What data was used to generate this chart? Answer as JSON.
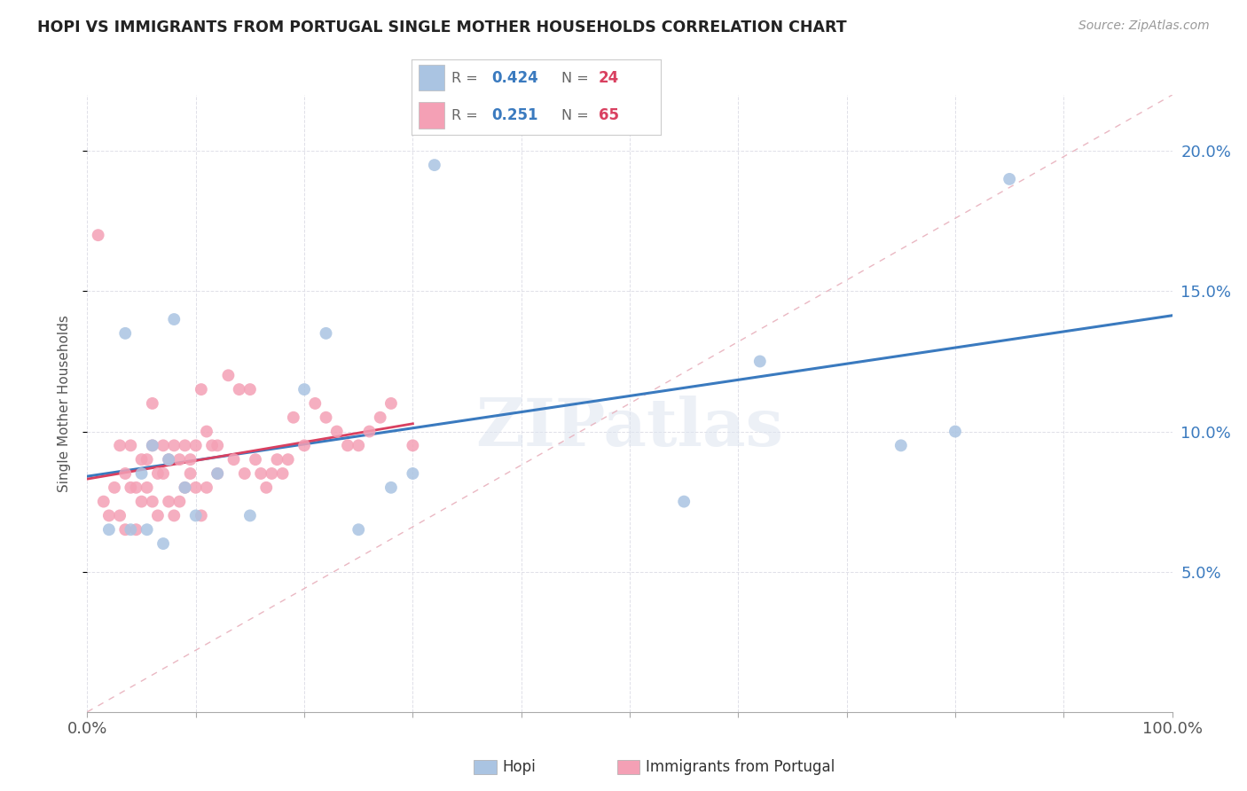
{
  "title": "HOPI VS IMMIGRANTS FROM PORTUGAL SINGLE MOTHER HOUSEHOLDS CORRELATION CHART",
  "source": "Source: ZipAtlas.com",
  "ylabel": "Single Mother Households",
  "hopi_R": 0.424,
  "hopi_N": 24,
  "portugal_R": 0.251,
  "portugal_N": 65,
  "hopi_color": "#aac4e2",
  "portugal_color": "#f4a0b5",
  "hopi_line_color": "#3a7abf",
  "portugal_line_color": "#d94060",
  "diagonal_color": "#e8b0bc",
  "background_color": "#ffffff",
  "grid_color": "#e0e0e8",
  "hopi_scatter_x": [
    2.0,
    3.5,
    4.0,
    5.0,
    5.5,
    6.0,
    7.0,
    7.5,
    8.0,
    9.0,
    10.0,
    12.0,
    15.0,
    20.0,
    22.0,
    25.0,
    28.0,
    30.0,
    32.0,
    55.0,
    62.0,
    75.0,
    80.0,
    85.0
  ],
  "hopi_scatter_y": [
    6.5,
    13.5,
    6.5,
    8.5,
    6.5,
    9.5,
    6.0,
    9.0,
    14.0,
    8.0,
    7.0,
    8.5,
    7.0,
    11.5,
    13.5,
    6.5,
    8.0,
    8.5,
    19.5,
    7.5,
    12.5,
    9.5,
    10.0,
    19.0
  ],
  "portugal_scatter_x": [
    1.0,
    1.5,
    2.0,
    2.5,
    3.0,
    3.0,
    3.5,
    3.5,
    4.0,
    4.0,
    4.5,
    4.5,
    5.0,
    5.0,
    5.5,
    5.5,
    6.0,
    6.0,
    6.0,
    6.5,
    6.5,
    7.0,
    7.0,
    7.5,
    7.5,
    8.0,
    8.0,
    8.5,
    8.5,
    9.0,
    9.0,
    9.5,
    9.5,
    10.0,
    10.0,
    10.5,
    10.5,
    11.0,
    11.0,
    11.5,
    12.0,
    12.0,
    13.0,
    13.5,
    14.0,
    14.5,
    15.0,
    15.5,
    16.0,
    16.5,
    17.0,
    17.5,
    18.0,
    18.5,
    19.0,
    20.0,
    21.0,
    22.0,
    23.0,
    24.0,
    25.0,
    26.0,
    27.0,
    28.0,
    30.0
  ],
  "portugal_scatter_y": [
    17.0,
    7.5,
    7.0,
    8.0,
    9.5,
    7.0,
    8.5,
    6.5,
    8.0,
    9.5,
    8.0,
    6.5,
    9.0,
    7.5,
    9.0,
    8.0,
    7.5,
    9.5,
    11.0,
    8.5,
    7.0,
    8.5,
    9.5,
    7.5,
    9.0,
    9.5,
    7.0,
    9.0,
    7.5,
    9.5,
    8.0,
    9.0,
    8.5,
    9.5,
    8.0,
    11.5,
    7.0,
    10.0,
    8.0,
    9.5,
    9.5,
    8.5,
    12.0,
    9.0,
    11.5,
    8.5,
    11.5,
    9.0,
    8.5,
    8.0,
    8.5,
    9.0,
    8.5,
    9.0,
    10.5,
    9.5,
    11.0,
    10.5,
    10.0,
    9.5,
    9.5,
    10.0,
    10.5,
    11.0,
    9.5
  ],
  "xlim": [
    0,
    100
  ],
  "ylim": [
    0,
    22
  ],
  "yticks": [
    5.0,
    10.0,
    15.0,
    20.0
  ],
  "ytick_labels": [
    "5.0%",
    "10.0%",
    "15.0%",
    "20.0%"
  ],
  "xtick_labels_show": [
    "0.0%",
    "100.0%"
  ],
  "watermark": "ZIPatlas",
  "legend_entries": [
    "Hopi",
    "Immigrants from Portugal"
  ],
  "legend_R_color": "#3a7abf",
  "legend_N_color": "#d94060"
}
